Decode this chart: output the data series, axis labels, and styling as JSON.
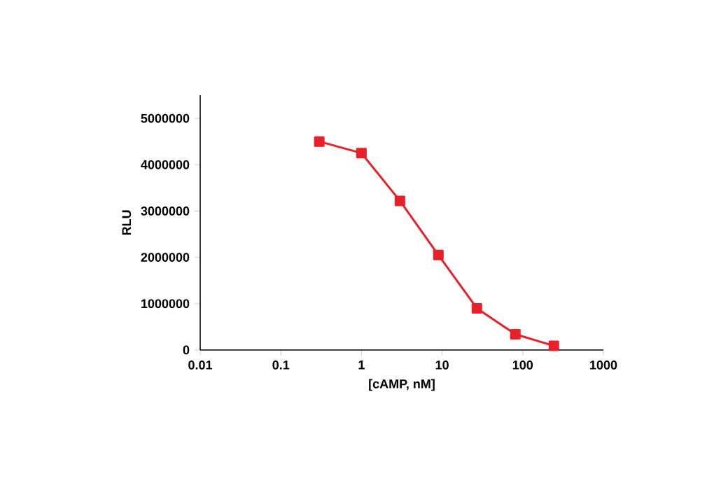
{
  "chart_data": {
    "type": "line",
    "xlabel": "[cAMP, nM]",
    "ylabel": "RLU",
    "log": "x",
    "marker": "square",
    "line_style": "solid",
    "grid": false,
    "x": [
      0.3,
      1,
      3,
      9,
      27,
      81,
      243
    ],
    "values": [
      4500000,
      4250000,
      3220000,
      2050000,
      900000,
      340000,
      90000
    ],
    "errors": [
      100000,
      null,
      null,
      null,
      null,
      null,
      null
    ],
    "color": "#e8202a",
    "xlim": [
      0.01,
      1000
    ],
    "xticks": [
      0.01,
      0.1,
      1,
      10,
      100,
      1000
    ],
    "ylim": [
      0,
      5500000
    ],
    "yticks": [
      0,
      1000000,
      2000000,
      3000000,
      4000000,
      5000000
    ]
  }
}
